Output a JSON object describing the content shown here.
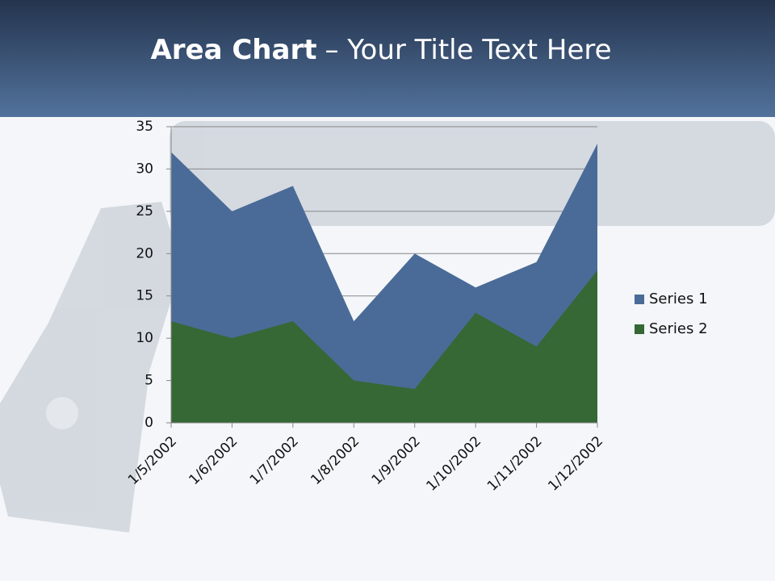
{
  "chart_data": {
    "type": "area",
    "title": {
      "bold": "Area Chart",
      "text": "– Your Title Text Here"
    },
    "categories": [
      "1/5/2002",
      "1/6/2002",
      "1/7/2002",
      "1/8/2002",
      "1/9/2002",
      "1/10/2002",
      "1/11/2002",
      "1/12/2002"
    ],
    "series": [
      {
        "name": "Series 1",
        "color": "#4a6b97",
        "values": [
          32,
          25,
          28,
          12,
          20,
          16,
          19,
          33
        ]
      },
      {
        "name": "Series 2",
        "color": "#356834",
        "values": [
          12,
          10,
          12,
          5,
          4,
          13,
          9,
          18
        ]
      }
    ],
    "ylim": [
      0,
      35
    ],
    "yticks": [
      0,
      5,
      10,
      15,
      20,
      25,
      30,
      35
    ],
    "grid": true,
    "legend": "right"
  }
}
